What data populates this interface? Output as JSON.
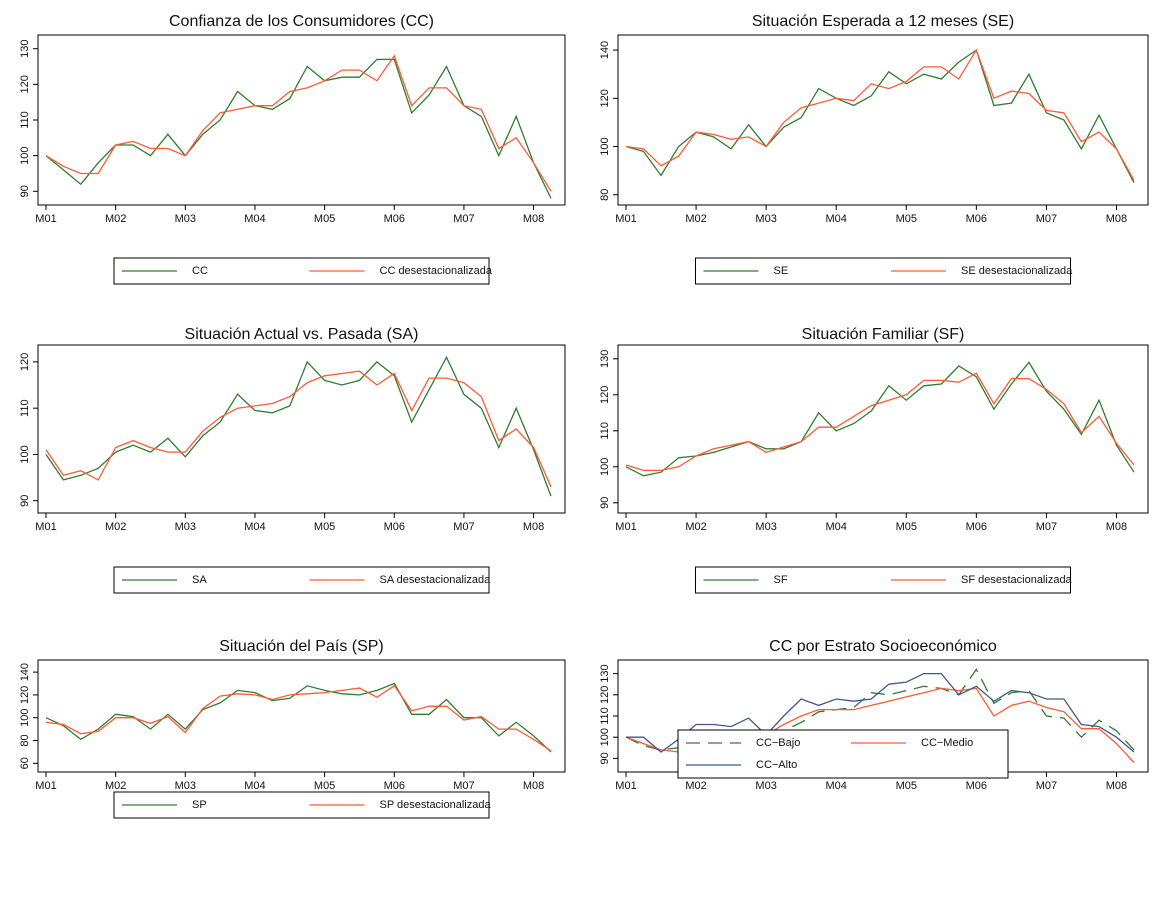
{
  "chart_data": [
    {
      "type": "line",
      "title": "Confianza de los Consumidores (CC)",
      "categories": [
        "M01",
        null,
        null,
        null,
        "M02",
        null,
        null,
        null,
        "M03",
        null,
        null,
        null,
        "M04",
        null,
        null,
        null,
        "M05",
        null,
        null,
        null,
        "M06",
        null,
        null,
        null,
        "M07",
        null,
        null,
        null,
        "M08",
        null
      ],
      "series": [
        {
          "name": "CC",
          "color": "#2e7d32",
          "line_style": "solid",
          "values": [
            100,
            96,
            92,
            98,
            103,
            103,
            100,
            106,
            100,
            106,
            110,
            118,
            114,
            113,
            116,
            125,
            121,
            122,
            122,
            127,
            127,
            112,
            117,
            125,
            114,
            111,
            100,
            111,
            98,
            88
          ]
        },
        {
          "name": "CC desestacionalizada",
          "color": "#ff5a36",
          "line_style": "solid",
          "values": [
            100,
            97,
            95,
            95,
            103,
            104,
            102,
            102,
            100,
            107,
            112,
            113,
            114,
            114,
            118,
            119,
            121,
            124,
            124,
            121,
            128,
            114,
            119,
            119,
            114,
            113,
            102,
            105,
            98,
            90
          ]
        }
      ],
      "ylim": [
        87,
        133
      ],
      "yticks": [
        90,
        100,
        110,
        120,
        130
      ]
    },
    {
      "type": "line",
      "title": "Situación Esperada a 12 meses (SE)",
      "categories": [
        "M01",
        null,
        null,
        null,
        "M02",
        null,
        null,
        null,
        "M03",
        null,
        null,
        null,
        "M04",
        null,
        null,
        null,
        "M05",
        null,
        null,
        null,
        "M06",
        null,
        null,
        null,
        "M07",
        null,
        null,
        null,
        "M08",
        null
      ],
      "series": [
        {
          "name": "SE",
          "color": "#2e7d32",
          "line_style": "solid",
          "values": [
            100,
            98,
            88,
            100,
            106,
            104,
            99,
            109,
            100,
            108,
            112,
            124,
            120,
            117,
            121,
            131,
            126,
            130,
            128,
            135,
            140,
            117,
            118,
            130,
            114,
            111,
            99,
            113,
            99,
            85
          ]
        },
        {
          "name": "SE desestacionalizada",
          "color": "#ff5a36",
          "line_style": "solid",
          "values": [
            100,
            99,
            92,
            96,
            106,
            105,
            103,
            104,
            100,
            110,
            116,
            118,
            120,
            119,
            126,
            124,
            127,
            133,
            133,
            128,
            140,
            120,
            123,
            122,
            115,
            114,
            102,
            106,
            99,
            86
          ]
        }
      ],
      "ylim": [
        77,
        145
      ],
      "yticks": [
        80,
        100,
        120,
        140
      ]
    },
    {
      "type": "line",
      "title": "Situación Actual vs. Pasada (SA)",
      "categories": [
        "M01",
        null,
        null,
        null,
        "M02",
        null,
        null,
        null,
        "M03",
        null,
        null,
        null,
        "M04",
        null,
        null,
        null,
        "M05",
        null,
        null,
        null,
        "M06",
        null,
        null,
        null,
        "M07",
        null,
        null,
        null,
        "M08",
        null
      ],
      "series": [
        {
          "name": "SA",
          "color": "#2e7d32",
          "line_style": "solid",
          "values": [
            100,
            94.5,
            95.5,
            97,
            100.5,
            102,
            100.5,
            103.5,
            99.5,
            104,
            107,
            113,
            109.5,
            109,
            110.5,
            120,
            116,
            115,
            116,
            120,
            117,
            107,
            114,
            121,
            113,
            110,
            101.5,
            110,
            101,
            91
          ]
        },
        {
          "name": "SA desestacionalizada",
          "color": "#ff5a36",
          "line_style": "solid",
          "values": [
            101,
            95.5,
            96.5,
            94.5,
            101.5,
            103,
            101.5,
            100.5,
            100.5,
            105,
            108,
            110,
            110.5,
            111,
            112.5,
            115.5,
            117,
            117.5,
            118,
            115,
            117.5,
            109.5,
            116.5,
            116.5,
            115.5,
            112.5,
            103,
            105.5,
            101.5,
            93
          ]
        }
      ],
      "ylim": [
        88,
        123
      ],
      "yticks": [
        90,
        100,
        110,
        120
      ]
    },
    {
      "type": "line",
      "title": "Situación Familiar (SF)",
      "categories": [
        "M01",
        null,
        null,
        null,
        "M02",
        null,
        null,
        null,
        "M03",
        null,
        null,
        null,
        "M04",
        null,
        null,
        null,
        "M05",
        null,
        null,
        null,
        "M06",
        null,
        null,
        null,
        "M07",
        null,
        null,
        null,
        "M08",
        null
      ],
      "series": [
        {
          "name": "SF",
          "color": "#2e7d32",
          "line_style": "solid",
          "values": [
            100,
            97.5,
            98.5,
            102.5,
            103,
            104,
            105.5,
            107,
            105,
            105,
            107,
            115,
            110,
            112,
            115.5,
            122.5,
            118.5,
            122.5,
            123,
            128,
            125,
            116,
            123,
            129,
            121,
            116,
            109,
            118.5,
            106,
            98.5
          ]
        },
        {
          "name": "SF desestacionalizada",
          "color": "#ff5a36",
          "line_style": "solid",
          "values": [
            100.5,
            99,
            99,
            100,
            103,
            105,
            106,
            107,
            104,
            105.5,
            107,
            111,
            111,
            114,
            117,
            118.5,
            120,
            124,
            124,
            123.5,
            126,
            117.5,
            124.5,
            124.5,
            121.5,
            117.5,
            109.5,
            114,
            106.5,
            100.5
          ]
        }
      ],
      "ylim": [
        88,
        133
      ],
      "yticks": [
        90,
        100,
        110,
        120,
        130
      ]
    },
    {
      "type": "line",
      "title": "Situación del País (SP)",
      "categories": [
        "M01",
        null,
        null,
        null,
        "M02",
        null,
        null,
        null,
        "M03",
        null,
        null,
        null,
        "M04",
        null,
        null,
        null,
        "M05",
        null,
        null,
        null,
        "M06",
        null,
        null,
        null,
        "M07",
        null,
        null,
        null,
        "M08",
        null
      ],
      "series": [
        {
          "name": "SP",
          "color": "#2e7d32",
          "line_style": "solid",
          "values": [
            100,
            93,
            81,
            90,
            103,
            101,
            90,
            103,
            90,
            107,
            113,
            124,
            122,
            115,
            117,
            128,
            124,
            121,
            120,
            124,
            130,
            103,
            103,
            116,
            100,
            100,
            84,
            96,
            84,
            70
          ]
        },
        {
          "name": "SP desestacionalizada",
          "color": "#ff5a36",
          "line_style": "solid",
          "values": [
            96,
            94,
            86,
            88,
            100,
            100,
            95,
            101,
            87,
            108,
            119,
            121,
            120,
            116,
            120,
            121,
            122,
            124,
            126,
            118,
            128,
            106,
            110,
            110,
            98,
            101,
            90,
            90,
            81,
            71
          ]
        }
      ],
      "ylim": [
        55,
        148
      ],
      "yticks": [
        60,
        80,
        100,
        120,
        140
      ]
    },
    {
      "type": "line",
      "title": "CC por Estrato Socioeconómico",
      "categories": [
        "M01",
        null,
        null,
        null,
        "M02",
        null,
        null,
        null,
        "M03",
        null,
        null,
        null,
        "M04",
        null,
        null,
        null,
        "M05",
        null,
        null,
        null,
        "M06",
        null,
        null,
        null,
        "M07",
        null,
        null,
        null,
        "M08",
        null
      ],
      "series": [
        {
          "name": "CC−Bajo",
          "color": "#2e7d32",
          "line_style": "dashed",
          "values": [
            100,
            96,
            94,
            95,
            100,
            102,
            100,
            99,
            99,
            103,
            107,
            112,
            113,
            114,
            121,
            120,
            122,
            124,
            123,
            120,
            132,
            116,
            121,
            122,
            110,
            109,
            100,
            108,
            103,
            94
          ]
        },
        {
          "name": "CC−Medio",
          "color": "#ff5a36",
          "line_style": "solid",
          "values": [
            100,
            97,
            94,
            93,
            103,
            102,
            101,
            101,
            101,
            106,
            110,
            113,
            113,
            113,
            115,
            117,
            119,
            121,
            123,
            122,
            123,
            110,
            115,
            117,
            114,
            112,
            104,
            104,
            97,
            88
          ]
        },
        {
          "name": "CC−Alto",
          "color": "#3f5a8a",
          "line_style": "solid",
          "values": [
            100,
            100,
            93,
            99,
            106,
            106,
            105,
            109,
            101,
            110,
            118,
            115,
            118,
            117,
            118,
            125,
            126,
            130,
            130,
            120,
            124,
            117,
            122,
            121,
            118,
            118,
            106,
            105,
            100,
            93
          ]
        }
      ],
      "ylim": [
        85,
        135
      ],
      "yticks": [
        90,
        100,
        110,
        120,
        130
      ]
    }
  ]
}
